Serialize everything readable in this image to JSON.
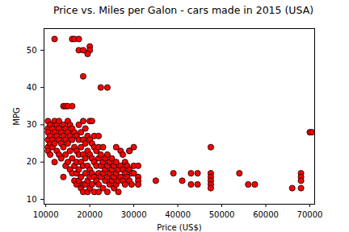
{
  "chart_data": {
    "type": "scatter",
    "title": "Price vs. Miles per Galon - cars made in 2015 (USA)",
    "x_label": "Price (US$)",
    "y_label": "MPG",
    "color": "red",
    "marker": "o",
    "grid": false,
    "xlim": [
      9600,
      71100
    ],
    "xticks": [
      10000,
      20000,
      30000,
      40000,
      50000,
      60000,
      70000
    ],
    "ylim": [
      8.7,
      55.8
    ],
    "yticks": [
      10,
      20,
      30,
      40,
      50
    ],
    "x": [
      10500,
      10500,
      10500,
      10500,
      10500,
      10500,
      11000,
      11000,
      11000,
      11000,
      11500,
      11500,
      11500,
      12000,
      12000,
      12000,
      12000,
      12500,
      12500,
      12500,
      13000,
      13000,
      13000,
      13000,
      13500,
      13500,
      13500,
      14000,
      14000,
      14000,
      14000,
      14500,
      14500,
      14500,
      14500,
      15000,
      15000,
      15000,
      15000,
      15500,
      15500,
      15500,
      15500,
      16000,
      16000,
      16000,
      16000,
      16500,
      16500,
      16500,
      16500,
      17000,
      17000,
      17000,
      17000,
      17000,
      17500,
      17500,
      17500,
      17500,
      17500,
      18000,
      18000,
      18000,
      18000,
      18000,
      18500,
      18500,
      18500,
      18500,
      18500,
      19000,
      19000,
      19000,
      19000,
      19000,
      19500,
      19500,
      19500,
      19500,
      19500,
      20000,
      20000,
      20000,
      20000,
      20000,
      20500,
      20500,
      20500,
      20500,
      21000,
      21000,
      21000,
      21000,
      21500,
      21500,
      21500,
      22000,
      22000,
      22000,
      22000,
      22000,
      22500,
      22500,
      22500,
      23000,
      23000,
      23000,
      23000,
      23500,
      23500,
      23500,
      24000,
      24000,
      24000,
      24000,
      24500,
      24500,
      24500,
      25000,
      25000,
      25000,
      25500,
      25500,
      25500,
      26000,
      26000,
      26000,
      26000,
      26500,
      26500,
      26500,
      27000,
      27000,
      27000,
      27500,
      27500,
      27500,
      28000,
      28000,
      28000,
      28500,
      28500,
      29000,
      29000,
      29000,
      29500,
      29500,
      12000,
      16000,
      16500,
      17500,
      20000,
      20000,
      17500,
      18500,
      19500,
      18500,
      22500,
      24000,
      14000,
      14500,
      15000,
      16000,
      18500,
      20000,
      20500,
      21000,
      22000,
      30000,
      47500,
      70000,
      70500,
      39000,
      43000,
      44500,
      47500,
      47500,
      47500,
      47500,
      47500,
      41000,
      43000,
      44500,
      54000,
      56000,
      57500,
      66000,
      68000,
      68000,
      68000,
      68000,
      35000,
      31000,
      31000,
      31000,
      30000,
      31000,
      29000,
      30000
    ],
    "values": [
      31,
      29,
      28,
      26,
      24,
      23,
      30,
      27,
      25,
      22,
      29,
      26,
      24,
      31,
      28,
      25,
      20,
      30,
      27,
      23,
      31,
      29,
      26,
      22,
      28,
      25,
      21,
      30,
      27,
      24,
      16,
      29,
      26,
      22,
      19,
      31,
      28,
      25,
      20,
      30,
      27,
      23,
      18,
      29,
      26,
      21,
      17,
      28,
      24,
      19,
      15,
      27,
      23,
      20,
      17,
      14,
      30,
      26,
      22,
      18,
      15,
      28,
      24,
      20,
      16,
      13,
      26,
      22,
      19,
      14,
      12,
      29,
      25,
      21,
      17,
      14,
      27,
      23,
      19,
      15,
      12,
      26,
      22,
      18,
      16,
      13,
      25,
      21,
      17,
      14,
      24,
      20,
      16,
      12,
      23,
      19,
      15,
      24,
      21,
      17,
      14,
      12,
      22,
      19,
      16,
      24,
      20,
      17,
      13,
      21,
      18,
      15,
      22,
      19,
      16,
      12,
      20,
      17,
      14,
      21,
      18,
      15,
      19,
      16,
      13,
      24,
      20,
      17,
      14,
      18,
      15,
      12,
      23,
      19,
      16,
      22,
      18,
      15,
      20,
      17,
      14,
      19,
      16,
      23,
      18,
      15,
      17,
      14,
      53,
      53,
      53,
      53,
      51,
      50,
      50,
      50,
      49,
      43,
      40,
      40,
      35,
      35,
      35,
      35,
      31,
      31,
      31,
      27,
      27,
      24,
      24,
      28,
      28,
      17,
      17,
      17,
      17,
      16,
      15,
      14,
      13,
      15,
      14,
      14,
      17,
      14,
      14,
      13,
      17,
      16,
      15,
      13,
      15,
      16,
      15,
      14,
      19,
      19,
      23,
      17
    ]
  }
}
